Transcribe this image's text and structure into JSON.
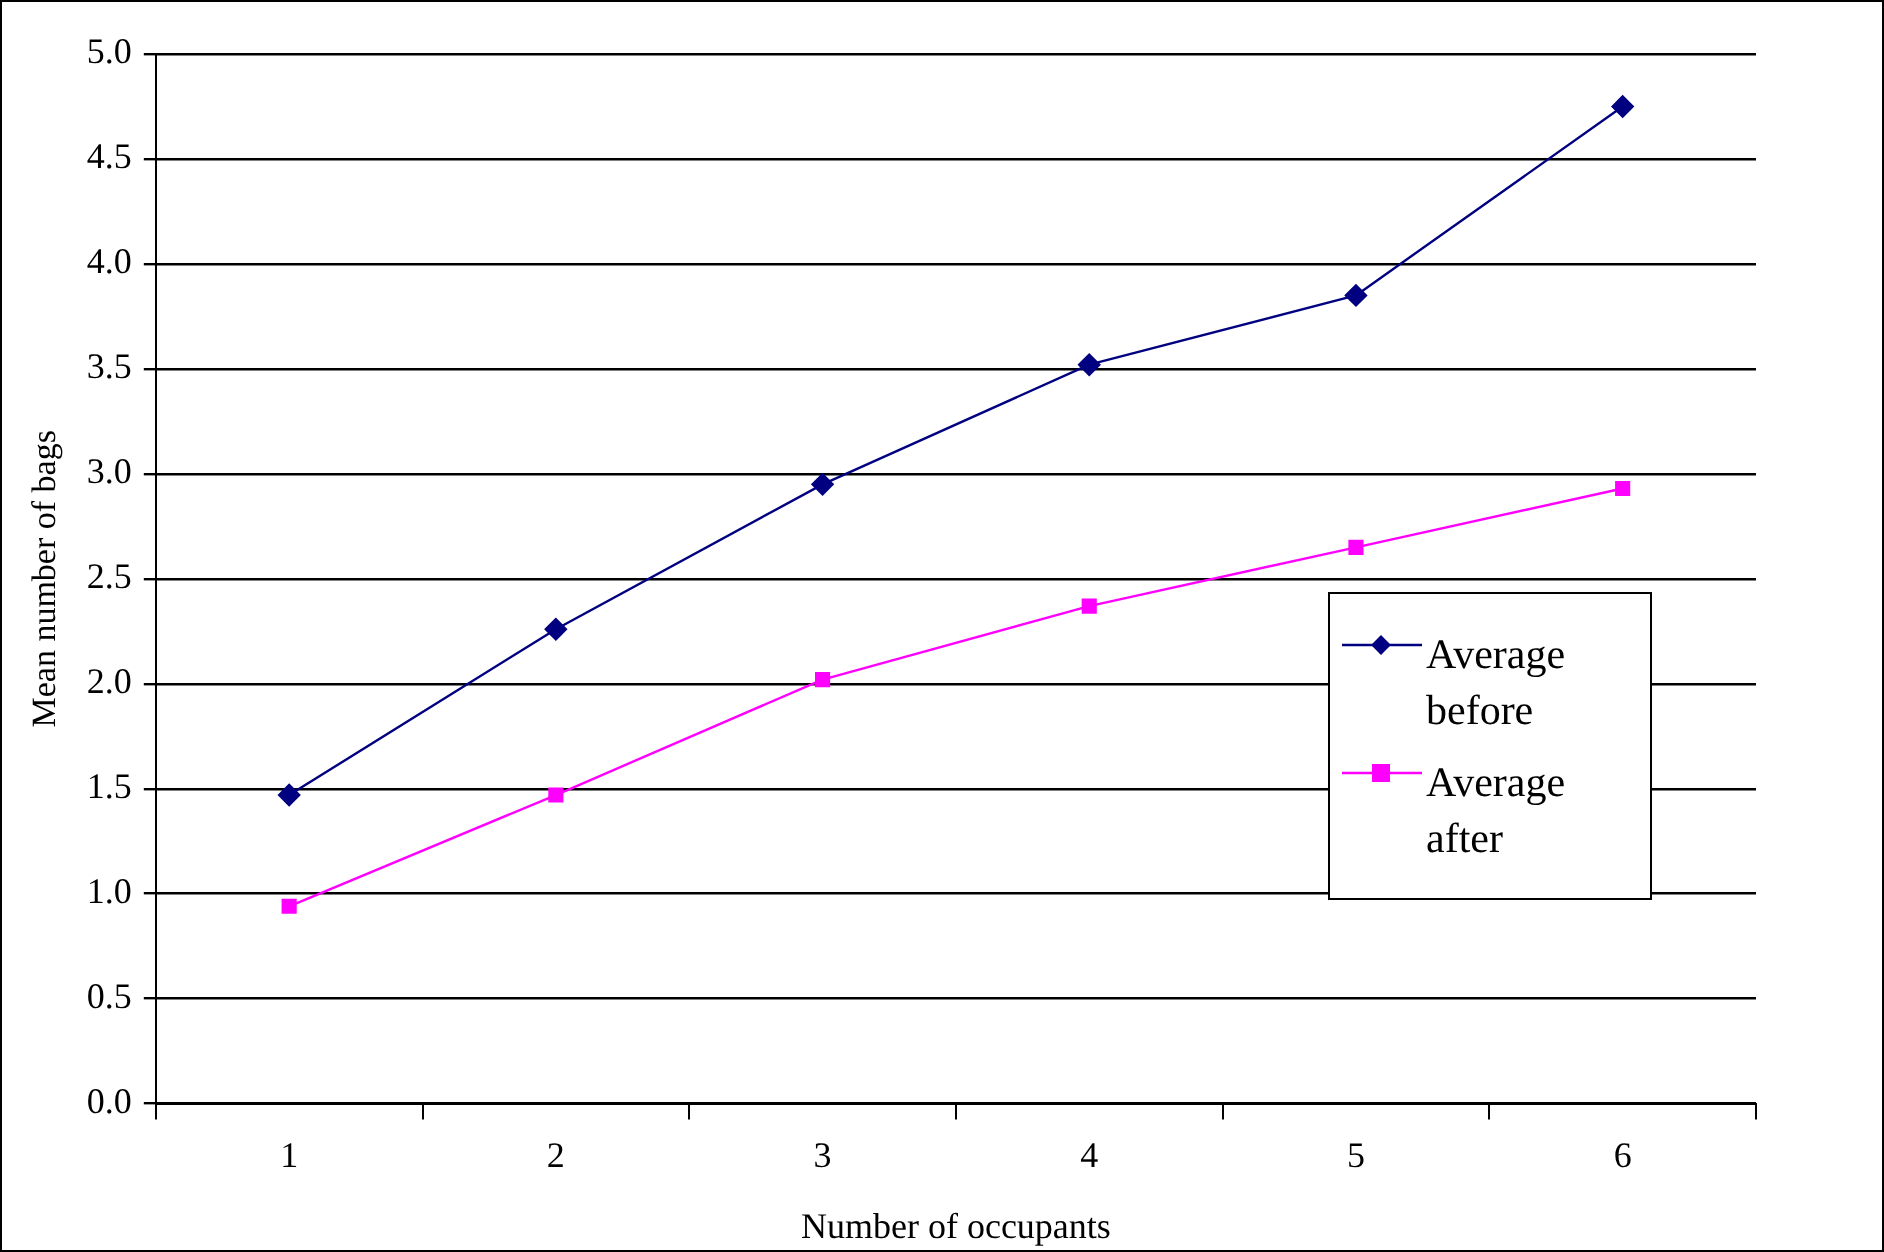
{
  "chart_data": {
    "type": "line",
    "xlabel": "Number of occupants",
    "ylabel": "Mean number of bags",
    "categories": [
      "1",
      "2",
      "3",
      "4",
      "5",
      "6"
    ],
    "series": [
      {
        "name": "Average before",
        "color": "#000080",
        "marker": "diamond",
        "values": [
          1.47,
          2.26,
          2.95,
          3.52,
          3.85,
          4.75
        ]
      },
      {
        "name": "Average after",
        "color": "#ff00ff",
        "marker": "square",
        "values": [
          0.94,
          1.47,
          2.02,
          2.37,
          2.65,
          2.93
        ]
      }
    ],
    "ylim": [
      0,
      5
    ],
    "yticks": [
      {
        "value": 0,
        "label": "0.0"
      },
      {
        "value": 0.5,
        "label": "0.5"
      },
      {
        "value": 1,
        "label": "1.0"
      },
      {
        "value": 1.5,
        "label": "1.5"
      },
      {
        "value": 2,
        "label": "2.0"
      },
      {
        "value": 2.5,
        "label": "2.5"
      },
      {
        "value": 3,
        "label": "3.0"
      },
      {
        "value": 3.5,
        "label": "3.5"
      },
      {
        "value": 4,
        "label": "4.0"
      },
      {
        "value": 4.5,
        "label": "4.5"
      },
      {
        "value": 5,
        "label": "5.0"
      }
    ],
    "grid": "y",
    "legend": "right",
    "line_style": "solid"
  }
}
